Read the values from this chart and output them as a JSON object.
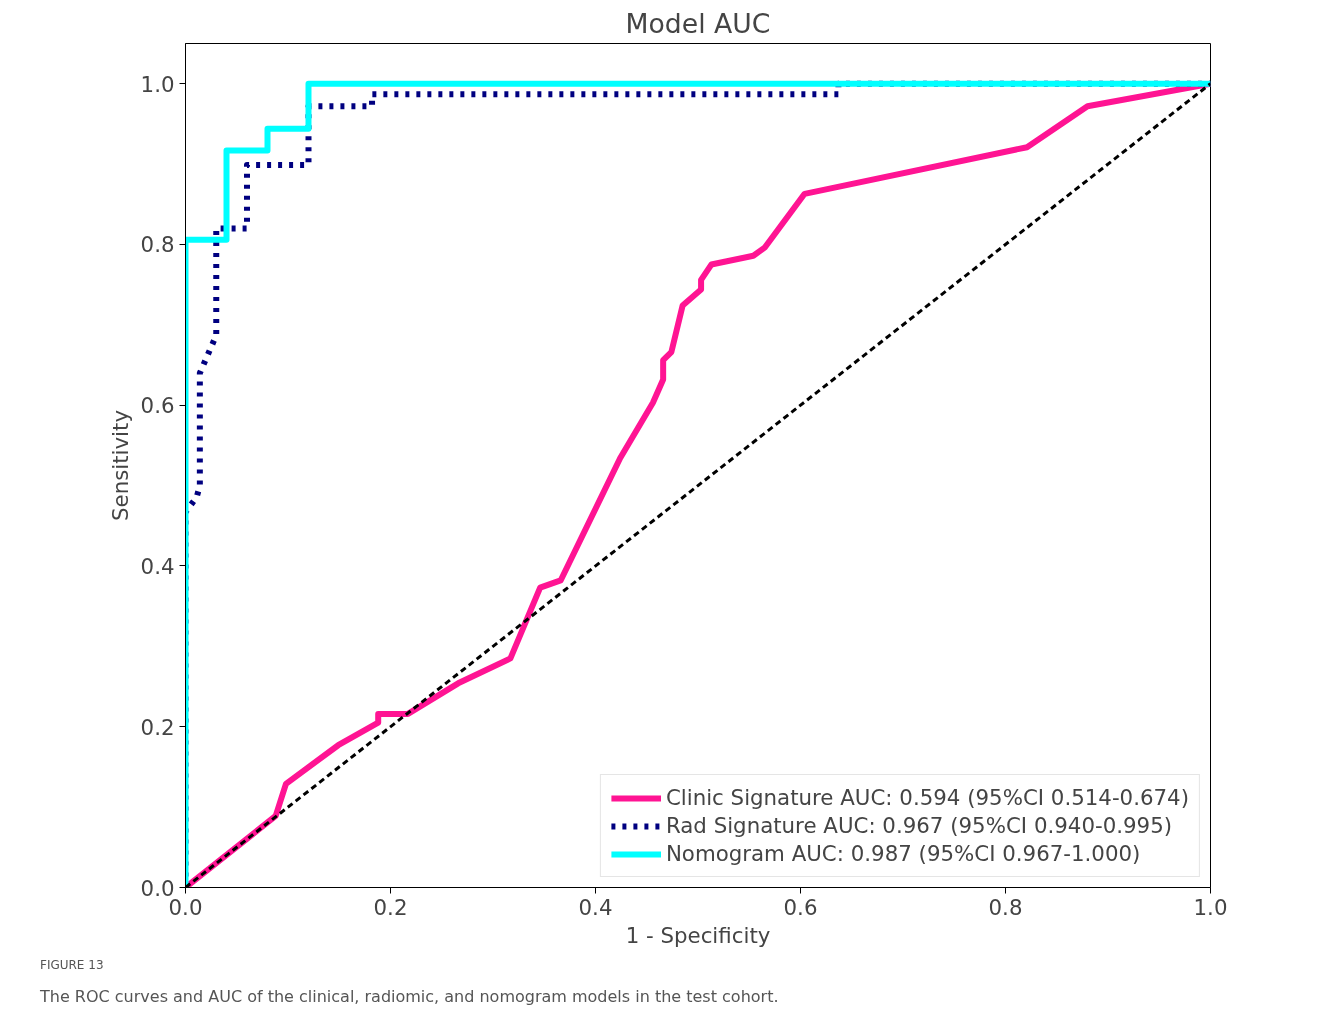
{
  "chart_data": {
    "type": "line",
    "title": "Model AUC",
    "xlabel": "1 - Specificity",
    "ylabel": "Sensitivity",
    "xlim": [
      0,
      1
    ],
    "ylim": [
      0,
      1.05
    ],
    "xticks": [
      {
        "value": 0,
        "label": "0.0"
      },
      0.2,
      0.4,
      0.6,
      0.8,
      {
        "value": 1,
        "label": "1.0"
      }
    ],
    "yticks": [
      {
        "value": 0,
        "label": "0.0"
      },
      0.2,
      0.4,
      0.6,
      0.8,
      {
        "value": 1,
        "label": "1.0"
      }
    ],
    "grid": false,
    "legend": "bottom right",
    "series": [
      {
        "name": "Clinic Signature AUC: 0.594 (95%CI 0.514-0.674)",
        "color": "#ff1493",
        "line_style": "solid",
        "x": [
          0,
          0.088,
          0.098,
          0.149,
          0.188,
          0.188,
          0.217,
          0.266,
          0.317,
          0.346,
          0.366,
          0.424,
          0.456,
          0.466,
          0.466,
          0.474,
          0.485,
          0.503,
          0.503,
          0.513,
          0.554,
          0.565,
          0.604,
          0.821,
          0.88,
          1
        ],
        "values": [
          0,
          0.089,
          0.129,
          0.177,
          0.205,
          0.216,
          0.216,
          0.254,
          0.285,
          0.373,
          0.382,
          0.534,
          0.603,
          0.632,
          0.656,
          0.666,
          0.724,
          0.744,
          0.756,
          0.775,
          0.786,
          0.796,
          0.863,
          0.921,
          0.972,
          1
        ]
      },
      {
        "name": "Rad Signature AUC: 0.967 (95%CI 0.940-0.995)",
        "color": "#000080",
        "line_style": "dotted",
        "x": [
          0,
          0,
          0.011,
          0.014,
          0.014,
          0.03,
          0.03,
          0.06,
          0.06,
          0.12,
          0.12,
          0.182,
          0.182,
          0.637,
          0.637,
          1
        ],
        "values": [
          0,
          0.467,
          0.486,
          0.5,
          0.64,
          0.687,
          0.82,
          0.82,
          0.899,
          0.899,
          0.972,
          0.972,
          0.987,
          0.987,
          1,
          1
        ]
      },
      {
        "name": "Nomogram AUC: 0.987 (95%CI 0.967-1.000)",
        "color": "#00ffff",
        "line_style": "solid",
        "x": [
          0,
          0,
          0.04,
          0.04,
          0.08,
          0.08,
          0.12,
          0.12,
          1
        ],
        "values": [
          0,
          0.806,
          0.806,
          0.917,
          0.917,
          0.944,
          0.944,
          1,
          1
        ]
      },
      {
        "color": "#000000",
        "line_style": "dashed",
        "x": [
          0,
          1
        ],
        "values": [
          0,
          1
        ]
      }
    ],
    "annotations": [
      "FIGURE 13",
      "The ROC curves and AUC of the clinical, radiomic, and nomogram models in the test cohort."
    ]
  }
}
